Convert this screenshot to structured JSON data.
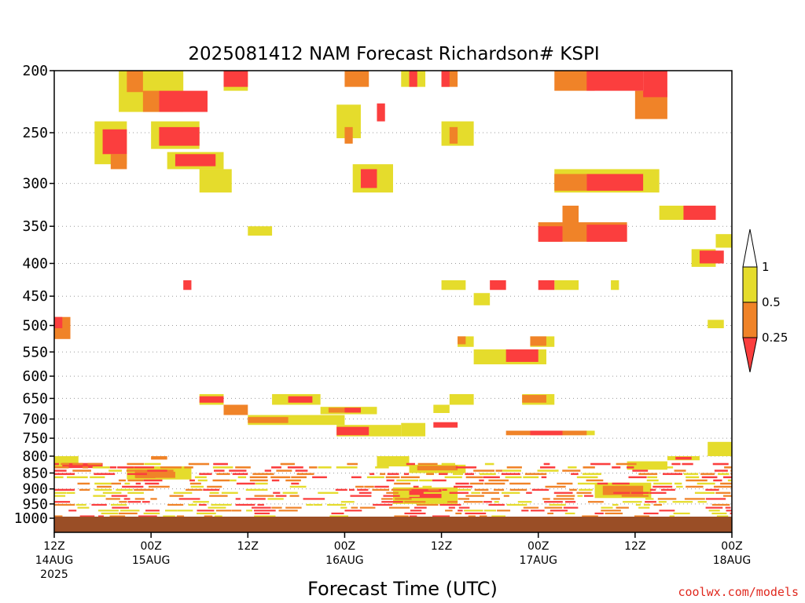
{
  "chart_data": {
    "type": "heatmap",
    "title": "2025081412 NAM Forecast Richardson# KSPI",
    "xlabel": "Forecast Time (UTC)",
    "ylabel": "",
    "y_scale": "pressure (log), inverted",
    "y_ticks": [
      "200",
      "250",
      "300",
      "350",
      "400",
      "450",
      "500",
      "550",
      "600",
      "650",
      "700",
      "750",
      "800",
      "850",
      "900",
      "950",
      "1000"
    ],
    "y_grid": true,
    "x_range": [
      "2025-08-14T12:00Z",
      "2025-08-18T00:00Z"
    ],
    "x_ticks": [
      {
        "line1": "12Z",
        "line2": "14AUG",
        "line3": "2025",
        "time": "2025-08-14T12:00Z"
      },
      {
        "line1": "00Z",
        "line2": "15AUG",
        "line3": "",
        "time": "2025-08-15T00:00Z"
      },
      {
        "line1": "12Z",
        "line2": "",
        "line3": "",
        "time": "2025-08-15T12:00Z"
      },
      {
        "line1": "00Z",
        "line2": "16AUG",
        "line3": "",
        "time": "2025-08-16T00:00Z"
      },
      {
        "line1": "12Z",
        "line2": "",
        "line3": "",
        "time": "2025-08-16T12:00Z"
      },
      {
        "line1": "00Z",
        "line2": "17AUG",
        "line3": "",
        "time": "2025-08-17T00:00Z"
      },
      {
        "line1": "12Z",
        "line2": "",
        "line3": "",
        "time": "2025-08-17T12:00Z"
      },
      {
        "line1": "00Z",
        "line2": "18AUG",
        "line3": "",
        "time": "2025-08-18T00:00Z"
      }
    ],
    "colorbar": {
      "labels": [
        "1",
        "0.5",
        "0.25"
      ],
      "bins": [
        {
          "range": "0.5-1",
          "color": "#e5dc2c"
        },
        {
          "range": "0.25-0.5",
          "color": "#f08328"
        },
        {
          "range": "<0.25",
          "color": "#fb3e3e"
        }
      ]
    },
    "ground": {
      "pressure": 1000,
      "color": "#9a4e26"
    },
    "regions": [
      {
        "t0": "2025-08-14T20Z",
        "t1": "2025-08-15T04Z",
        "p0": 200,
        "p1": 232,
        "bin": "0.5-1"
      },
      {
        "t0": "2025-08-14T21Z",
        "t1": "2025-08-14T23Z",
        "p0": 200,
        "p1": 216,
        "bin": "0.25-0.5"
      },
      {
        "t0": "2025-08-15T01Z",
        "t1": "2025-08-15T07Z",
        "p0": 215,
        "p1": 232,
        "bin": "<0.25"
      },
      {
        "t0": "2025-08-14T23Z",
        "t1": "2025-08-15T01Z",
        "p0": 215,
        "p1": 232,
        "bin": "0.25-0.5"
      },
      {
        "t0": "2025-08-15T09Z",
        "t1": "2025-08-15T12Z",
        "p0": 200,
        "p1": 215,
        "bin": "0.5-1"
      },
      {
        "t0": "2025-08-15T09Z",
        "t1": "2025-08-15T12Z",
        "p0": 200,
        "p1": 212,
        "bin": "<0.25"
      },
      {
        "t0": "2025-08-14T17Z",
        "t1": "2025-08-14T21Z",
        "p0": 240,
        "p1": 280,
        "bin": "0.5-1"
      },
      {
        "t0": "2025-08-14T18Z",
        "t1": "2025-08-14T21Z",
        "p0": 247,
        "p1": 270,
        "bin": "<0.25"
      },
      {
        "t0": "2025-08-14T19Z",
        "t1": "2025-08-14T21Z",
        "p0": 270,
        "p1": 285,
        "bin": "0.25-0.5"
      },
      {
        "t0": "2025-08-15T00Z",
        "t1": "2025-08-15T06Z",
        "p0": 240,
        "p1": 265,
        "bin": "0.5-1"
      },
      {
        "t0": "2025-08-15T01Z",
        "t1": "2025-08-15T06Z",
        "p0": 245,
        "p1": 262,
        "bin": "<0.25"
      },
      {
        "t0": "2025-08-15T02Z",
        "t1": "2025-08-15T09Z",
        "p0": 268,
        "p1": 285,
        "bin": "0.5-1"
      },
      {
        "t0": "2025-08-15T03Z",
        "t1": "2025-08-15T08Z",
        "p0": 270,
        "p1": 282,
        "bin": "<0.25"
      },
      {
        "t0": "2025-08-15T06Z",
        "t1": "2025-08-15T10Z",
        "p0": 285,
        "p1": 310,
        "bin": "0.5-1"
      },
      {
        "t0": "2025-08-15T12Z",
        "t1": "2025-08-15T15Z",
        "p0": 350,
        "p1": 362,
        "bin": "0.5-1"
      },
      {
        "t0": "2025-08-14T12Z",
        "t1": "2025-08-14T14Z",
        "p0": 485,
        "p1": 525,
        "bin": "0.25-0.5"
      },
      {
        "t0": "2025-08-14T12Z",
        "t1": "2025-08-14T13Z",
        "p0": 485,
        "p1": 505,
        "bin": "<0.25"
      },
      {
        "t0": "2025-08-15T04Z",
        "t1": "2025-08-15T05Z",
        "p0": 425,
        "p1": 440,
        "bin": "<0.25"
      },
      {
        "t0": "2025-08-16T00Z",
        "t1": "2025-08-16T03Z",
        "p0": 200,
        "p1": 212,
        "bin": "0.25-0.5"
      },
      {
        "t0": "2025-08-15T23Z",
        "t1": "2025-08-16T02Z",
        "p0": 226,
        "p1": 255,
        "bin": "0.5-1"
      },
      {
        "t0": "2025-08-16T00Z",
        "t1": "2025-08-16T01Z",
        "p0": 245,
        "p1": 260,
        "bin": "0.25-0.5"
      },
      {
        "t0": "2025-08-16T04Z",
        "t1": "2025-08-16T05Z",
        "p0": 225,
        "p1": 240,
        "bin": "<0.25"
      },
      {
        "t0": "2025-08-16T01Z",
        "t1": "2025-08-16T06Z",
        "p0": 280,
        "p1": 310,
        "bin": "0.5-1"
      },
      {
        "t0": "2025-08-16T02Z",
        "t1": "2025-08-16T04Z",
        "p0": 285,
        "p1": 305,
        "bin": "<0.25"
      },
      {
        "t0": "2025-08-16T07Z",
        "t1": "2025-08-16T10Z",
        "p0": 200,
        "p1": 212,
        "bin": "0.5-1"
      },
      {
        "t0": "2025-08-16T08Z",
        "t1": "2025-08-16T09Z",
        "p0": 200,
        "p1": 212,
        "bin": "<0.25"
      },
      {
        "t0": "2025-08-16T12Z",
        "t1": "2025-08-16T14Z",
        "p0": 200,
        "p1": 212,
        "bin": "0.25-0.5"
      },
      {
        "t0": "2025-08-16T12Z",
        "t1": "2025-08-16T13Z",
        "p0": 200,
        "p1": 212,
        "bin": "<0.25"
      },
      {
        "t0": "2025-08-16T12Z",
        "t1": "2025-08-16T16Z",
        "p0": 240,
        "p1": 262,
        "bin": "0.5-1"
      },
      {
        "t0": "2025-08-16T13Z",
        "t1": "2025-08-16T14Z",
        "p0": 245,
        "p1": 260,
        "bin": "0.25-0.5"
      },
      {
        "t0": "2025-08-17T02Z",
        "t1": "2025-08-17T07Z",
        "p0": 200,
        "p1": 215,
        "bin": "0.25-0.5"
      },
      {
        "t0": "2025-08-17T06Z",
        "t1": "2025-08-17T13Z",
        "p0": 200,
        "p1": 215,
        "bin": "<0.25"
      },
      {
        "t0": "2025-08-17T12Z",
        "t1": "2025-08-17T16Z",
        "p0": 215,
        "p1": 238,
        "bin": "0.25-0.5"
      },
      {
        "t0": "2025-08-17T13Z",
        "t1": "2025-08-17T16Z",
        "p0": 200,
        "p1": 220,
        "bin": "<0.25"
      },
      {
        "t0": "2025-08-17T02Z",
        "t1": "2025-08-17T15Z",
        "p0": 285,
        "p1": 310,
        "bin": "0.5-1"
      },
      {
        "t0": "2025-08-17T02Z",
        "t1": "2025-08-17T06Z",
        "p0": 290,
        "p1": 308,
        "bin": "0.25-0.5"
      },
      {
        "t0": "2025-08-17T06Z",
        "t1": "2025-08-17T13Z",
        "p0": 290,
        "p1": 308,
        "bin": "<0.25"
      },
      {
        "t0": "2025-08-17T00Z",
        "t1": "2025-08-17T11Z",
        "p0": 345,
        "p1": 370,
        "bin": "0.25-0.5"
      },
      {
        "t0": "2025-08-17T00Z",
        "t1": "2025-08-17T03Z",
        "p0": 350,
        "p1": 370,
        "bin": "<0.25"
      },
      {
        "t0": "2025-08-17T06Z",
        "t1": "2025-08-17T11Z",
        "p0": 348,
        "p1": 370,
        "bin": "<0.25"
      },
      {
        "t0": "2025-08-17T03Z",
        "t1": "2025-08-17T05Z",
        "p0": 325,
        "p1": 348,
        "bin": "0.25-0.5"
      },
      {
        "t0": "2025-08-17T15Z",
        "t1": "2025-08-17T22Z",
        "p0": 325,
        "p1": 342,
        "bin": "0.5-1"
      },
      {
        "t0": "2025-08-17T18Z",
        "t1": "2025-08-17T22Z",
        "p0": 325,
        "p1": 342,
        "bin": "<0.25"
      },
      {
        "t0": "2025-08-17T19Z",
        "t1": "2025-08-17T22Z",
        "p0": 380,
        "p1": 405,
        "bin": "0.5-1"
      },
      {
        "t0": "2025-08-17T20Z",
        "t1": "2025-08-17T23Z",
        "p0": 382,
        "p1": 400,
        "bin": "<0.25"
      },
      {
        "t0": "2025-08-17T22Z",
        "t1": "2025-08-18T00Z",
        "p0": 360,
        "p1": 378,
        "bin": "0.5-1"
      },
      {
        "t0": "2025-08-16T12Z",
        "t1": "2025-08-16T15Z",
        "p0": 425,
        "p1": 440,
        "bin": "0.5-1"
      },
      {
        "t0": "2025-08-16T16Z",
        "t1": "2025-08-16T18Z",
        "p0": 445,
        "p1": 465,
        "bin": "0.5-1"
      },
      {
        "t0": "2025-08-16T18Z",
        "t1": "2025-08-16T20Z",
        "p0": 425,
        "p1": 440,
        "bin": "<0.25"
      },
      {
        "t0": "2025-08-17T00Z",
        "t1": "2025-08-17T02Z",
        "p0": 425,
        "p1": 440,
        "bin": "<0.25"
      },
      {
        "t0": "2025-08-17T02Z",
        "t1": "2025-08-17T05Z",
        "p0": 425,
        "p1": 440,
        "bin": "0.5-1"
      },
      {
        "t0": "2025-08-17T09Z",
        "t1": "2025-08-17T10Z",
        "p0": 425,
        "p1": 440,
        "bin": "0.5-1"
      },
      {
        "t0": "2025-08-17T21Z",
        "t1": "2025-08-17T23Z",
        "p0": 490,
        "p1": 505,
        "bin": "0.5-1"
      },
      {
        "t0": "2025-08-16T14Z",
        "t1": "2025-08-16T16Z",
        "p0": 520,
        "p1": 540,
        "bin": "0.5-1"
      },
      {
        "t0": "2025-08-16T14Z",
        "t1": "2025-08-16T15Z",
        "p0": 520,
        "p1": 535,
        "bin": "0.25-0.5"
      },
      {
        "t0": "2025-08-16T16Z",
        "t1": "2025-08-17T01Z",
        "p0": 545,
        "p1": 575,
        "bin": "0.5-1"
      },
      {
        "t0": "2025-08-16T20Z",
        "t1": "2025-08-17T00Z",
        "p0": 545,
        "p1": 570,
        "bin": "<0.25"
      },
      {
        "t0": "2025-08-16T23Z",
        "t1": "2025-08-17T02Z",
        "p0": 520,
        "p1": 540,
        "bin": "0.5-1"
      },
      {
        "t0": "2025-08-16T23Z",
        "t1": "2025-08-17T01Z",
        "p0": 520,
        "p1": 538,
        "bin": "0.25-0.5"
      },
      {
        "t0": "2025-08-15T06Z",
        "t1": "2025-08-15T09Z",
        "p0": 640,
        "p1": 665,
        "bin": "0.5-1"
      },
      {
        "t0": "2025-08-15T06Z",
        "t1": "2025-08-15T09Z",
        "p0": 645,
        "p1": 660,
        "bin": "<0.25"
      },
      {
        "t0": "2025-08-15T09Z",
        "t1": "2025-08-15T12Z",
        "p0": 665,
        "p1": 690,
        "bin": "0.25-0.5"
      },
      {
        "t0": "2025-08-15T12Z",
        "t1": "2025-08-16T00Z",
        "p0": 690,
        "p1": 715,
        "bin": "0.5-1"
      },
      {
        "t0": "2025-08-15T12Z",
        "t1": "2025-08-15T17Z",
        "p0": 695,
        "p1": 710,
        "bin": "0.25-0.5"
      },
      {
        "t0": "2025-08-15T15Z",
        "t1": "2025-08-15T21Z",
        "p0": 640,
        "p1": 665,
        "bin": "0.5-1"
      },
      {
        "t0": "2025-08-15T17Z",
        "t1": "2025-08-15T20Z",
        "p0": 645,
        "p1": 660,
        "bin": "<0.25"
      },
      {
        "t0": "2025-08-15T21Z",
        "t1": "2025-08-16T04Z",
        "p0": 670,
        "p1": 688,
        "bin": "0.5-1"
      },
      {
        "t0": "2025-08-15T22Z",
        "t1": "2025-08-16T02Z",
        "p0": 672,
        "p1": 684,
        "bin": "0.25-0.5"
      },
      {
        "t0": "2025-08-16T00Z",
        "t1": "2025-08-16T02Z",
        "p0": 672,
        "p1": 684,
        "bin": "<0.25"
      },
      {
        "t0": "2025-08-15T23Z",
        "t1": "2025-08-16T07Z",
        "p0": 715,
        "p1": 745,
        "bin": "0.5-1"
      },
      {
        "t0": "2025-08-15T23Z",
        "t1": "2025-08-16T03Z",
        "p0": 720,
        "p1": 742,
        "bin": "<0.25"
      },
      {
        "t0": "2025-08-16T07Z",
        "t1": "2025-08-16T10Z",
        "p0": 710,
        "p1": 745,
        "bin": "0.5-1"
      },
      {
        "t0": "2025-08-16T11Z",
        "t1": "2025-08-16T14Z",
        "p0": 708,
        "p1": 722,
        "bin": "<0.25"
      },
      {
        "t0": "2025-08-16T13Z",
        "t1": "2025-08-16T16Z",
        "p0": 640,
        "p1": 665,
        "bin": "0.5-1"
      },
      {
        "t0": "2025-08-16T11Z",
        "t1": "2025-08-16T13Z",
        "p0": 665,
        "p1": 685,
        "bin": "0.5-1"
      },
      {
        "t0": "2025-08-16T22Z",
        "t1": "2025-08-17T02Z",
        "p0": 640,
        "p1": 665,
        "bin": "0.5-1"
      },
      {
        "t0": "2025-08-16T22Z",
        "t1": "2025-08-17T01Z",
        "p0": 642,
        "p1": 660,
        "bin": "0.25-0.5"
      },
      {
        "t0": "2025-08-16T20Z",
        "t1": "2025-08-17T06Z",
        "p0": 730,
        "p1": 742,
        "bin": "0.25-0.5"
      },
      {
        "t0": "2025-08-16T23Z",
        "t1": "2025-08-17T03Z",
        "p0": 730,
        "p1": 742,
        "bin": "<0.25"
      },
      {
        "t0": "2025-08-17T03Z",
        "t1": "2025-08-17T07Z",
        "p0": 730,
        "p1": 742,
        "bin": "0.5-1"
      },
      {
        "t0": "2025-08-14T12Z",
        "t1": "2025-08-14T15Z",
        "p0": 800,
        "p1": 830,
        "bin": "0.5-1"
      },
      {
        "t0": "2025-08-14T13Z",
        "t1": "2025-08-14T18Z",
        "p0": 820,
        "p1": 835,
        "bin": "<0.25"
      },
      {
        "t0": "2025-08-14T21Z",
        "t1": "2025-08-15T05Z",
        "p0": 830,
        "p1": 870,
        "bin": "0.5-1"
      },
      {
        "t0": "2025-08-14T22Z",
        "t1": "2025-08-15T03Z",
        "p0": 840,
        "p1": 865,
        "bin": "0.25-0.5"
      },
      {
        "t0": "2025-08-15T00Z",
        "t1": "2025-08-15T02Z",
        "p0": 800,
        "p1": 810,
        "bin": "0.25-0.5"
      },
      {
        "t0": "2025-08-16T04Z",
        "t1": "2025-08-16T08Z",
        "p0": 800,
        "p1": 830,
        "bin": "0.5-1"
      },
      {
        "t0": "2025-08-16T08Z",
        "t1": "2025-08-16T15Z",
        "p0": 825,
        "p1": 850,
        "bin": "0.5-1"
      },
      {
        "t0": "2025-08-16T09Z",
        "t1": "2025-08-16T14Z",
        "p0": 828,
        "p1": 842,
        "bin": "0.25-0.5"
      },
      {
        "t0": "2025-08-17T11Z",
        "t1": "2025-08-17T16Z",
        "p0": 815,
        "p1": 840,
        "bin": "0.5-1"
      },
      {
        "t0": "2025-08-17T16Z",
        "t1": "2025-08-17T20Z",
        "p0": 800,
        "p1": 812,
        "bin": "0.5-1"
      },
      {
        "t0": "2025-08-17T17Z",
        "t1": "2025-08-17T19Z",
        "p0": 802,
        "p1": 810,
        "bin": "<0.25"
      },
      {
        "t0": "2025-08-17T21Z",
        "t1": "2025-08-18T00Z",
        "p0": 760,
        "p1": 800,
        "bin": "0.5-1"
      },
      {
        "t0": "2025-08-16T06Z",
        "t1": "2025-08-16T14Z",
        "p0": 895,
        "p1": 950,
        "bin": "0.5-1"
      },
      {
        "t0": "2025-08-16T08Z",
        "t1": "2025-08-16T12Z",
        "p0": 900,
        "p1": 930,
        "bin": "<0.25"
      },
      {
        "t0": "2025-08-17T07Z",
        "t1": "2025-08-17T14Z",
        "p0": 880,
        "p1": 930,
        "bin": "0.5-1"
      },
      {
        "t0": "2025-08-17T08Z",
        "t1": "2025-08-17T13Z",
        "p0": 890,
        "p1": 920,
        "bin": "0.25-0.5"
      }
    ],
    "bands": [
      {
        "p0": 820,
        "p1": 1000,
        "t0": "2025-08-14T12Z",
        "t1": "2025-08-18T00Z"
      }
    ]
  },
  "credit": "coolwx.com/models"
}
